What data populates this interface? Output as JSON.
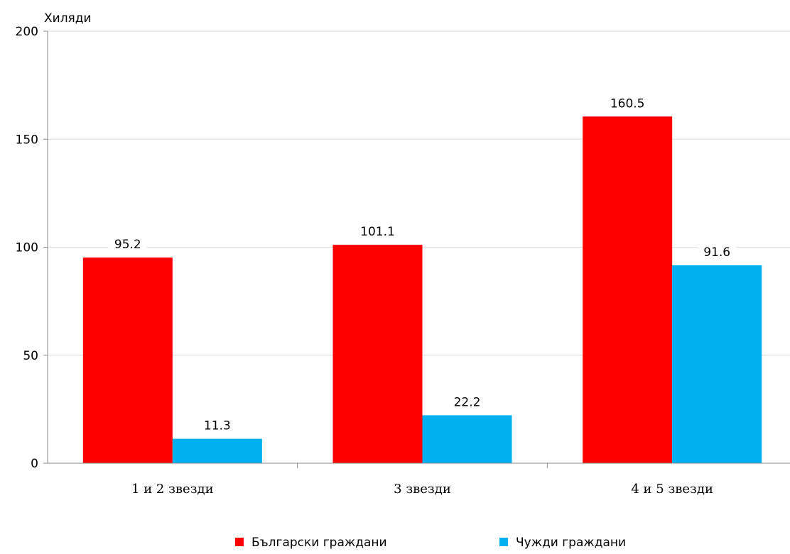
{
  "chart_data": {
    "type": "bar",
    "unit_label": "Хиляди",
    "categories": [
      "1 и 2 звезди",
      "3 звезди",
      "4 и 5 звезди"
    ],
    "series": [
      {
        "name": "Български граждани",
        "color": "#ff0000",
        "values": [
          95.2,
          101.1,
          160.5
        ]
      },
      {
        "name": "Чужди граждани",
        "color": "#00b0f0",
        "values": [
          11.3,
          22.2,
          91.6
        ]
      }
    ],
    "ylim": [
      0,
      200
    ],
    "yticks": [
      0,
      50,
      100,
      150,
      200
    ],
    "grid": true,
    "legend_position": "bottom",
    "data_labels": true
  }
}
